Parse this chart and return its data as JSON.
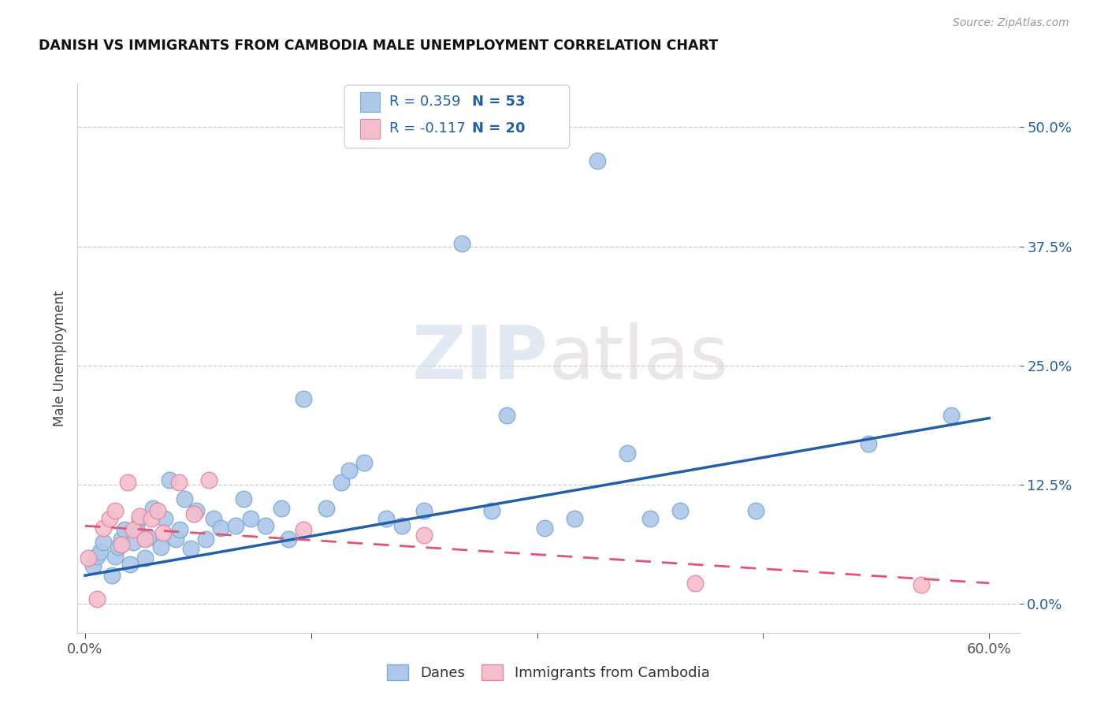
{
  "title": "DANISH VS IMMIGRANTS FROM CAMBODIA MALE UNEMPLOYMENT CORRELATION CHART",
  "source": "Source: ZipAtlas.com",
  "ylabel": "Male Unemployment",
  "xlim": [
    -0.005,
    0.62
  ],
  "ylim": [
    -0.03,
    0.545
  ],
  "yticks": [
    0.0,
    0.125,
    0.25,
    0.375,
    0.5
  ],
  "ytick_labels": [
    "0.0%",
    "12.5%",
    "25.0%",
    "37.5%",
    "50.0%"
  ],
  "xticks": [
    0.0,
    0.15,
    0.3,
    0.45,
    0.6
  ],
  "xtick_labels": [
    "0.0%",
    "",
    "",
    "",
    "60.0%"
  ],
  "danes_color": "#adc8e8",
  "danes_edge_color": "#7aadd4",
  "cambodia_color": "#f5bece",
  "cambodia_edge_color": "#e8869a",
  "line_blue": "#2060a8",
  "line_pink": "#e05575",
  "R_danes": 0.359,
  "N_danes": 53,
  "R_cambodia": -0.117,
  "N_cambodia": 20,
  "legend_label_danes": "Danes",
  "legend_label_cambodia": "Immigrants from Cambodia",
  "danes_x": [
    0.005,
    0.008,
    0.01,
    0.012,
    0.018,
    0.02,
    0.022,
    0.024,
    0.026,
    0.03,
    0.032,
    0.034,
    0.036,
    0.04,
    0.042,
    0.045,
    0.05,
    0.053,
    0.056,
    0.06,
    0.063,
    0.066,
    0.07,
    0.074,
    0.08,
    0.085,
    0.09,
    0.1,
    0.105,
    0.11,
    0.12,
    0.13,
    0.135,
    0.145,
    0.16,
    0.17,
    0.175,
    0.185,
    0.2,
    0.21,
    0.225,
    0.25,
    0.27,
    0.28,
    0.305,
    0.325,
    0.34,
    0.36,
    0.375,
    0.395,
    0.445,
    0.52,
    0.575
  ],
  "danes_y": [
    0.04,
    0.05,
    0.055,
    0.065,
    0.03,
    0.05,
    0.06,
    0.068,
    0.078,
    0.042,
    0.065,
    0.08,
    0.09,
    0.048,
    0.07,
    0.1,
    0.06,
    0.09,
    0.13,
    0.068,
    0.078,
    0.11,
    0.058,
    0.098,
    0.068,
    0.09,
    0.08,
    0.082,
    0.11,
    0.09,
    0.082,
    0.1,
    0.068,
    0.215,
    0.1,
    0.128,
    0.14,
    0.148,
    0.09,
    0.082,
    0.098,
    0.378,
    0.098,
    0.198,
    0.08,
    0.09,
    0.465,
    0.158,
    0.09,
    0.098,
    0.098,
    0.168,
    0.198
  ],
  "cambodia_x": [
    0.002,
    0.008,
    0.012,
    0.016,
    0.02,
    0.024,
    0.028,
    0.032,
    0.036,
    0.04,
    0.044,
    0.048,
    0.052,
    0.062,
    0.072,
    0.082,
    0.145,
    0.225,
    0.405,
    0.555
  ],
  "cambodia_y": [
    0.048,
    0.005,
    0.08,
    0.09,
    0.098,
    0.062,
    0.128,
    0.078,
    0.092,
    0.068,
    0.09,
    0.098,
    0.075,
    0.128,
    0.095,
    0.13,
    0.078,
    0.072,
    0.022,
    0.02
  ],
  "watermark_zip": "ZIP",
  "watermark_atlas": "atlas",
  "background_color": "#ffffff",
  "grid_color": "#cccccc",
  "blue_line_y0": 0.03,
  "blue_line_y1": 0.195,
  "pink_line_y0": 0.082,
  "pink_line_y1": 0.022
}
